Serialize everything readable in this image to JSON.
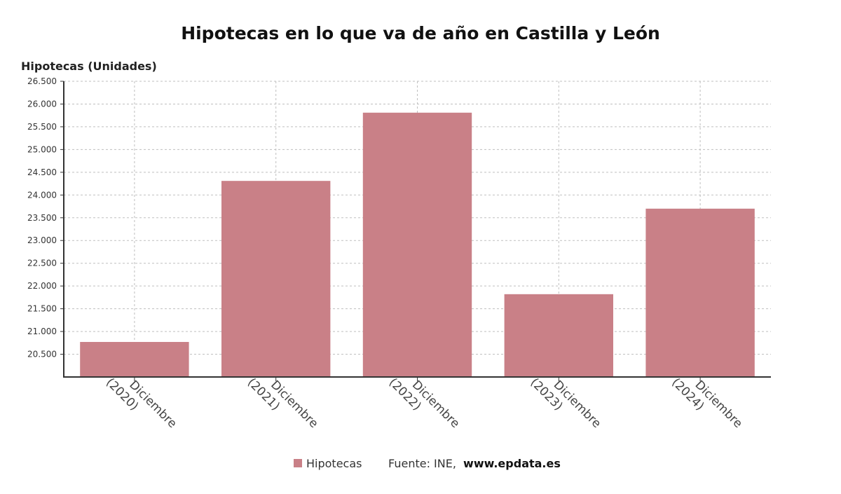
{
  "chart_data": {
    "type": "bar",
    "title": "Hipotecas en lo que va de año en Castilla y León",
    "ylabel": "Hipotecas (Unidades)",
    "xlabel": "",
    "categories": [
      "Diciembre (2020)",
      "Diciembre (2021)",
      "Diciembre (2022)",
      "Diciembre (2023)",
      "Diciembre (2024)"
    ],
    "category_lines": [
      [
        "Diciembre",
        "(2020)"
      ],
      [
        "Diciembre",
        "(2021)"
      ],
      [
        "Diciembre",
        "(2022)"
      ],
      [
        "Diciembre",
        "(2023)"
      ],
      [
        "Diciembre",
        "(2024)"
      ]
    ],
    "series": [
      {
        "name": "Hipotecas",
        "color": "#c98087",
        "values": [
          20770,
          24310,
          25810,
          21820,
          23700
        ]
      }
    ],
    "ylim": [
      20000,
      26500
    ],
    "yticks": [
      20500,
      21000,
      21500,
      22000,
      22500,
      23000,
      23500,
      24000,
      24500,
      25000,
      25500,
      26000,
      26500
    ],
    "ytick_labels": [
      "20.500",
      "21.000",
      "21.500",
      "22.000",
      "22.500",
      "23.000",
      "23.500",
      "24.000",
      "24.500",
      "25.000",
      "25.500",
      "26.000",
      "26.500"
    ],
    "grid": true,
    "legend": {
      "placement": "bottom-center",
      "entries": [
        "Hipotecas"
      ]
    }
  },
  "footer": {
    "source_label": "Fuente: INE,",
    "source_site": "www.epdata.es"
  }
}
